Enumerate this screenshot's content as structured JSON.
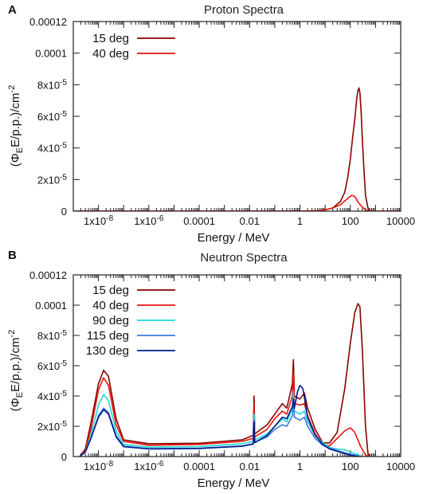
{
  "chart_data": [
    {
      "panel": "A",
      "type": "line",
      "title": "Proton Spectra",
      "xlabel": "Energy / MeV",
      "ylabel_main": "(Φ",
      "ylabel_sub": "E",
      "ylabel_rest": "E/p.p.)/cm",
      "ylabel_sup": "-2",
      "xscale": "log",
      "xlim": [
        1e-09,
        10000
      ],
      "ylim": [
        0,
        0.00012
      ],
      "x_ticks": [
        {
          "value": 1e-08,
          "label": "1x10",
          "sup": "-8"
        },
        {
          "value": 1e-06,
          "label": "1x10",
          "sup": "-6"
        },
        {
          "value": 0.0001,
          "label": "0.0001",
          "sup": ""
        },
        {
          "value": 0.01,
          "label": "0.01",
          "sup": ""
        },
        {
          "value": 1,
          "label": "1",
          "sup": ""
        },
        {
          "value": 100,
          "label": "100",
          "sup": ""
        },
        {
          "value": 10000,
          "label": "10000",
          "sup": ""
        }
      ],
      "y_ticks": [
        {
          "value": 0,
          "label": "0",
          "sup": ""
        },
        {
          "value": 2e-05,
          "label": "2x10",
          "sup": "-5"
        },
        {
          "value": 4e-05,
          "label": "4x10",
          "sup": "-5"
        },
        {
          "value": 6e-05,
          "label": "6x10",
          "sup": "-5"
        },
        {
          "value": 8e-05,
          "label": "8x10",
          "sup": "-5"
        },
        {
          "value": 0.0001,
          "label": "0.0001",
          "sup": ""
        },
        {
          "value": 0.00012,
          "label": "0.00012",
          "sup": ""
        }
      ],
      "legend_position": "top-left",
      "series": [
        {
          "name": "15 deg",
          "color": "#8b0000",
          "points": [
            [
              1e-09,
              0
            ],
            [
              1,
              0
            ],
            [
              5,
              2e-07
            ],
            [
              10,
              8e-07
            ],
            [
              20,
              2e-06
            ],
            [
              40,
              6e-06
            ],
            [
              60,
              1.2e-05
            ],
            [
              80,
              2.2e-05
            ],
            [
              100,
              3.3e-05
            ],
            [
              120,
              4.5e-05
            ],
            [
              150,
              5.8e-05
            ],
            [
              180,
              7.1e-05
            ],
            [
              200,
              7.6e-05
            ],
            [
              220,
              7.8e-05
            ],
            [
              240,
              7.5e-05
            ],
            [
              270,
              6.2e-05
            ],
            [
              300,
              4.5e-05
            ],
            [
              350,
              2.5e-05
            ],
            [
              400,
              1e-05
            ],
            [
              500,
              2e-06
            ],
            [
              600,
              0
            ],
            [
              10000,
              0
            ]
          ]
        },
        {
          "name": "40 deg",
          "color": "#e8150b",
          "points": [
            [
              1e-09,
              0
            ],
            [
              1,
              0
            ],
            [
              5,
              2e-07
            ],
            [
              10,
              8e-07
            ],
            [
              20,
              2e-06
            ],
            [
              40,
              4e-06
            ],
            [
              60,
              6.5e-06
            ],
            [
              80,
              8e-06
            ],
            [
              100,
              9.5e-06
            ],
            [
              120,
              1e-05
            ],
            [
              140,
              9.5e-06
            ],
            [
              170,
              8e-06
            ],
            [
              200,
              5.8e-06
            ],
            [
              250,
              4e-06
            ],
            [
              300,
              2.5e-06
            ],
            [
              400,
              8e-07
            ],
            [
              500,
              0
            ],
            [
              10000,
              0
            ]
          ]
        }
      ]
    },
    {
      "panel": "B",
      "type": "line",
      "title": "Neutron Spectra",
      "xlabel": "Energy / MeV",
      "ylabel_main": "(Φ",
      "ylabel_sub": "E",
      "ylabel_rest": "E/p.p.)/cm",
      "ylabel_sup": "-2",
      "xscale": "log",
      "xlim": [
        1e-09,
        10000
      ],
      "ylim": [
        0,
        0.00012
      ],
      "x_ticks": [
        {
          "value": 1e-08,
          "label": "1x10",
          "sup": "-8"
        },
        {
          "value": 1e-06,
          "label": "1x10",
          "sup": "-6"
        },
        {
          "value": 0.0001,
          "label": "0.0001",
          "sup": ""
        },
        {
          "value": 0.01,
          "label": "0.01",
          "sup": ""
        },
        {
          "value": 1,
          "label": "1",
          "sup": ""
        },
        {
          "value": 100,
          "label": "100",
          "sup": ""
        },
        {
          "value": 10000,
          "label": "10000",
          "sup": ""
        }
      ],
      "y_ticks": [
        {
          "value": 0,
          "label": "0",
          "sup": ""
        },
        {
          "value": 2e-05,
          "label": "2x10",
          "sup": "-5"
        },
        {
          "value": 4e-05,
          "label": "4x10",
          "sup": "-5"
        },
        {
          "value": 6e-05,
          "label": "6x10",
          "sup": "-5"
        },
        {
          "value": 8e-05,
          "label": "8x10",
          "sup": "-5"
        },
        {
          "value": 0.0001,
          "label": "0.0001",
          "sup": ""
        },
        {
          "value": 0.00012,
          "label": "0.00012",
          "sup": ""
        }
      ],
      "legend_position": "top-left",
      "series": [
        {
          "name": "15 deg",
          "color": "#8b0000",
          "points": [
            [
              1.8e-09,
              0
            ],
            [
              3e-09,
              5e-06
            ],
            [
              5e-09,
              2.2e-05
            ],
            [
              1e-08,
              4.8e-05
            ],
            [
              1.6e-08,
              5.7e-05
            ],
            [
              2.5e-08,
              5.3e-05
            ],
            [
              5e-08,
              2.5e-05
            ],
            [
              1e-07,
              1.1e-05
            ],
            [
              1e-06,
              8.5e-06
            ],
            [
              0.0001,
              8.8e-06
            ],
            [
              0.005,
              1.1e-05
            ],
            [
              0.014,
              1.4e-05
            ],
            [
              0.015,
              4e-05
            ],
            [
              0.016,
              1.5e-05
            ],
            [
              0.05,
              2.1e-05
            ],
            [
              0.1,
              2.8e-05
            ],
            [
              0.2,
              3.5e-05
            ],
            [
              0.3,
              3.2e-05
            ],
            [
              0.5,
              4.8e-05
            ],
            [
              0.55,
              6.4e-05
            ],
            [
              0.6,
              4e-05
            ],
            [
              1,
              3.8e-05
            ],
            [
              1.5,
              4.2e-05
            ],
            [
              2,
              3.2e-05
            ],
            [
              4,
              1.8e-05
            ],
            [
              8,
              9e-06
            ],
            [
              15,
              9e-06
            ],
            [
              30,
              1.6e-05
            ],
            [
              60,
              4.5e-05
            ],
            [
              100,
              7.5e-05
            ],
            [
              150,
              9.5e-05
            ],
            [
              200,
              0.000101
            ],
            [
              240,
              9.9e-05
            ],
            [
              300,
              7e-05
            ],
            [
              400,
              2e-05
            ],
            [
              500,
              2e-06
            ],
            [
              600,
              0
            ]
          ]
        },
        {
          "name": "40 deg",
          "color": "#e8150b",
          "points": [
            [
              1.8e-09,
              0
            ],
            [
              3e-09,
              4e-06
            ],
            [
              5e-09,
              1.8e-05
            ],
            [
              1e-08,
              4.4e-05
            ],
            [
              1.6e-08,
              5.2e-05
            ],
            [
              2.5e-08,
              4.7e-05
            ],
            [
              5e-08,
              2.1e-05
            ],
            [
              1e-07,
              1e-05
            ],
            [
              1e-06,
              7.5e-06
            ],
            [
              0.0001,
              8e-06
            ],
            [
              0.005,
              1e-05
            ],
            [
              0.014,
              1.2e-05
            ],
            [
              0.015,
              3.5e-05
            ],
            [
              0.016,
              1.3e-05
            ],
            [
              0.05,
              1.8e-05
            ],
            [
              0.1,
              2.5e-05
            ],
            [
              0.2,
              3e-05
            ],
            [
              0.3,
              2.8e-05
            ],
            [
              0.5,
              4e-05
            ],
            [
              0.55,
              5.5e-05
            ],
            [
              0.6,
              3.5e-05
            ],
            [
              1,
              3.4e-05
            ],
            [
              1.5,
              3.5e-05
            ],
            [
              2,
              2.7e-05
            ],
            [
              4,
              1.5e-05
            ],
            [
              8,
              8e-06
            ],
            [
              15,
              7e-06
            ],
            [
              30,
              1.2e-05
            ],
            [
              60,
              1.7e-05
            ],
            [
              100,
              1.9e-05
            ],
            [
              150,
              1.6e-05
            ],
            [
              250,
              7e-06
            ],
            [
              400,
              1e-06
            ],
            [
              500,
              0
            ]
          ]
        },
        {
          "name": "90 deg",
          "color": "#1ed6d6",
          "points": [
            [
              1.8e-09,
              0
            ],
            [
              3e-09,
              3e-06
            ],
            [
              5e-09,
              1.4e-05
            ],
            [
              1e-08,
              3.4e-05
            ],
            [
              1.6e-08,
              4.1e-05
            ],
            [
              2.5e-08,
              3.7e-05
            ],
            [
              5e-08,
              1.7e-05
            ],
            [
              1e-07,
              8e-06
            ],
            [
              1e-06,
              6.2e-06
            ],
            [
              0.0001,
              6.6e-06
            ],
            [
              0.005,
              8.5e-06
            ],
            [
              0.014,
              1e-05
            ],
            [
              0.015,
              2.8e-05
            ],
            [
              0.016,
              1.1e-05
            ],
            [
              0.05,
              1.5e-05
            ],
            [
              0.1,
              2e-05
            ],
            [
              0.2,
              2.5e-05
            ],
            [
              0.3,
              2.3e-05
            ],
            [
              0.5,
              3.2e-05
            ],
            [
              0.55,
              4.3e-05
            ],
            [
              0.6,
              3e-05
            ],
            [
              1,
              2.8e-05
            ],
            [
              1.5,
              3e-05
            ],
            [
              2,
              2.3e-05
            ],
            [
              4,
              1.4e-05
            ],
            [
              8,
              9e-06
            ],
            [
              15,
              6e-06
            ],
            [
              30,
              5e-06
            ],
            [
              60,
              4.5e-06
            ],
            [
              100,
              3e-06
            ],
            [
              200,
              1e-06
            ],
            [
              300,
              0
            ]
          ]
        },
        {
          "name": "115 deg",
          "color": "#3a7be0",
          "points": [
            [
              1.8e-09,
              0
            ],
            [
              3e-09,
              3e-06
            ],
            [
              5e-09,
              1.2e-05
            ],
            [
              1e-08,
              2.7e-05
            ],
            [
              1.6e-08,
              3.2e-05
            ],
            [
              2.5e-08,
              2.9e-05
            ],
            [
              5e-08,
              1.4e-05
            ],
            [
              1e-07,
              6.8e-06
            ],
            [
              1e-06,
              5.2e-06
            ],
            [
              0.0001,
              5.5e-06
            ],
            [
              0.005,
              7e-06
            ],
            [
              0.014,
              8.5e-06
            ],
            [
              0.015,
              2.4e-05
            ],
            [
              0.016,
              9.5e-06
            ],
            [
              0.05,
              1.3e-05
            ],
            [
              0.1,
              1.8e-05
            ],
            [
              0.2,
              2.1e-05
            ],
            [
              0.3,
              2e-05
            ],
            [
              0.5,
              2.7e-05
            ],
            [
              0.55,
              3.6e-05
            ],
            [
              0.6,
              2.6e-05
            ],
            [
              1,
              2.4e-05
            ],
            [
              1.5,
              2.6e-05
            ],
            [
              2,
              2e-05
            ],
            [
              4,
              1.2e-05
            ],
            [
              8,
              7.5e-06
            ],
            [
              15,
              5.5e-06
            ],
            [
              30,
              4e-06
            ],
            [
              60,
              2.5e-06
            ],
            [
              100,
              1.5e-06
            ],
            [
              200,
              5e-07
            ],
            [
              300,
              0
            ]
          ]
        },
        {
          "name": "130 deg",
          "color": "#001a8c",
          "points": [
            [
              1.8e-09,
              0
            ],
            [
              3e-09,
              3e-06
            ],
            [
              5e-09,
              1.2e-05
            ],
            [
              1e-08,
              2.6e-05
            ],
            [
              1.6e-08,
              3.1e-05
            ],
            [
              2.5e-08,
              2.8e-05
            ],
            [
              5e-08,
              1.3e-05
            ],
            [
              1e-07,
              6.5e-06
            ],
            [
              1e-06,
              5e-06
            ],
            [
              0.0001,
              5.3e-06
            ],
            [
              0.005,
              6.8e-06
            ],
            [
              0.014,
              8.2e-06
            ],
            [
              0.015,
              2.3e-05
            ],
            [
              0.016,
              9.2e-06
            ],
            [
              0.05,
              1.4e-05
            ],
            [
              0.1,
              2e-05
            ],
            [
              0.2,
              2.6e-05
            ],
            [
              0.3,
              2.5e-05
            ],
            [
              0.5,
              3.3e-05
            ],
            [
              0.55,
              3.8e-05
            ],
            [
              0.6,
              3.2e-05
            ],
            [
              0.8,
              4.3e-05
            ],
            [
              1,
              4.7e-05
            ],
            [
              1.3,
              4.5e-05
            ],
            [
              1.5,
              3.9e-05
            ],
            [
              2,
              2.6e-05
            ],
            [
              4,
              1.4e-05
            ],
            [
              8,
              8e-06
            ],
            [
              15,
              5e-06
            ],
            [
              30,
              3.5e-06
            ],
            [
              60,
              2e-06
            ],
            [
              100,
              1e-06
            ],
            [
              200,
              0
            ]
          ]
        }
      ]
    }
  ]
}
